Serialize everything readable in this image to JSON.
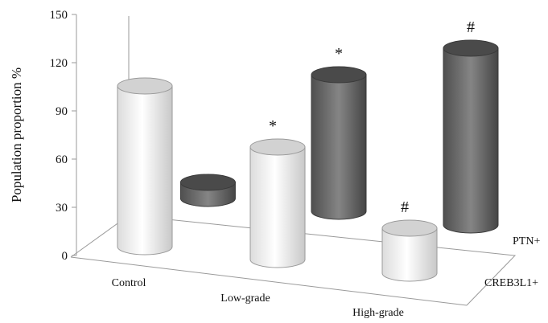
{
  "chart_data": {
    "type": "bar",
    "subtype": "3d-cylinder",
    "title": "",
    "ylabel": "Population proportion %",
    "ylim": [
      0,
      150
    ],
    "yticks": [
      0,
      30,
      60,
      90,
      120,
      150
    ],
    "categories": [
      "Control",
      "Low-grade",
      "High-grade"
    ],
    "series": [
      {
        "name": "CREB3L1+",
        "color": "#f4f4f4",
        "top_color": "#d2d2d2",
        "values": [
          100,
          70,
          28
        ],
        "annotations": [
          "",
          "*",
          "#"
        ]
      },
      {
        "name": "PTN+",
        "color": "#6e6e6e",
        "top_color": "#4a4a4a",
        "values": [
          10,
          85,
          110
        ],
        "annotations": [
          "",
          "*",
          "#"
        ]
      }
    ],
    "grid": false,
    "legend": "depth-axis"
  }
}
